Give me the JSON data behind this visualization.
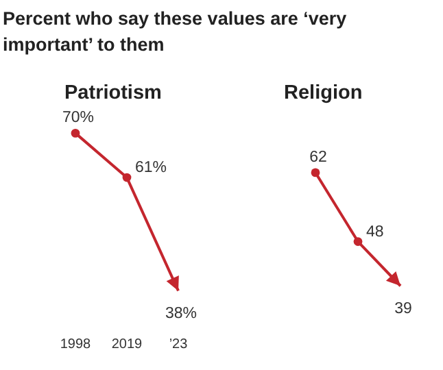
{
  "chart_data": [
    {
      "type": "line",
      "title": "Patriotism",
      "annotations": [
        "Percent who say these values are ‘very important’ to them"
      ],
      "categories": [
        "1998",
        "2019",
        "’23"
      ],
      "series": [
        {
          "color": "#c4262e",
          "values": [
            70,
            61,
            38
          ],
          "value_labels": [
            "70%",
            "61%",
            "38%"
          ]
        }
      ],
      "marker": "circle",
      "tick_labels": "x"
    },
    {
      "type": "line",
      "title": "Religion",
      "categories": [
        null,
        null,
        null
      ],
      "series": [
        {
          "color": "#c4262e",
          "values": [
            62,
            48,
            39
          ],
          "value_labels": [
            "62",
            "48",
            "39"
          ]
        }
      ],
      "marker": "circle",
      "tick_labels": false
    }
  ]
}
